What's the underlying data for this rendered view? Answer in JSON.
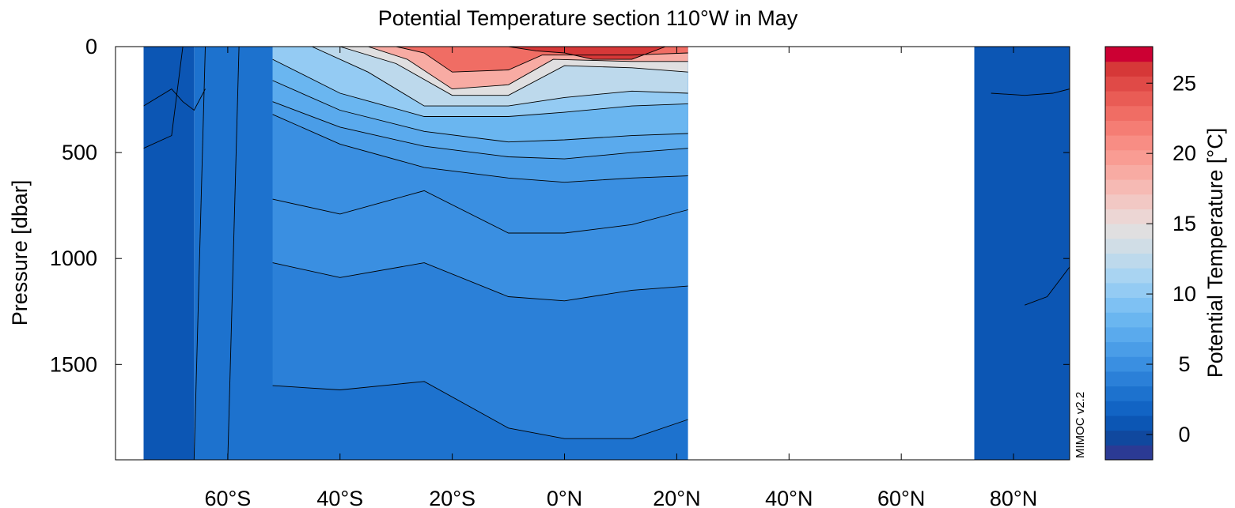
{
  "chart_data": {
    "type": "heatmap",
    "title": "Potential Temperature section 110°W in May",
    "xlabel": "",
    "ylabel": "Pressure [dbar]",
    "colorbar_label": "Potential Temperature [°C]",
    "watermark": "MIMOC v2.2",
    "xlim": [
      -80,
      90
    ],
    "ylim": [
      1950,
      0
    ],
    "x_ticks": [
      {
        "value": -60,
        "label": "60°S"
      },
      {
        "value": -40,
        "label": "40°S"
      },
      {
        "value": -20,
        "label": "20°S"
      },
      {
        "value": 0,
        "label": "0°N"
      },
      {
        "value": 20,
        "label": "20°N"
      },
      {
        "value": 40,
        "label": "40°N"
      },
      {
        "value": 60,
        "label": "60°N"
      },
      {
        "value": 80,
        "label": "80°N"
      }
    ],
    "y_ticks": [
      {
        "value": 0,
        "label": "0"
      },
      {
        "value": 500,
        "label": "500"
      },
      {
        "value": 1000,
        "label": "1000"
      },
      {
        "value": 1500,
        "label": "1500"
      }
    ],
    "colorbar": {
      "min": -1.8,
      "max": 27.6,
      "ticks": [
        {
          "value": 0,
          "label": "0"
        },
        {
          "value": 5,
          "label": "5"
        },
        {
          "value": 10,
          "label": "10"
        },
        {
          "value": 15,
          "label": "15"
        },
        {
          "value": 20,
          "label": "20"
        },
        {
          "value": 25,
          "label": "25"
        }
      ],
      "colors": [
        "#2b3a94",
        "#10489e",
        "#0c56b4",
        "#1264c4",
        "#1d72ce",
        "#2b80d8",
        "#3a8fe1",
        "#4a9de7",
        "#5aaaed",
        "#6ab6f0",
        "#7ec1f3",
        "#94cbf3",
        "#a9d4f2",
        "#bdd9ec",
        "#d0dde6",
        "#e0dfe0",
        "#ecd6d4",
        "#f2c8c4",
        "#f6bab4",
        "#f8aba3",
        "#f99c93",
        "#f88d84",
        "#f57d74",
        "#f06d64",
        "#e95c55",
        "#e04a47",
        "#d63838",
        "#cc0033"
      ]
    },
    "series": [
      {
        "level": -1,
        "depth": [
          [
            -75,
            280
          ],
          [
            -70,
            200
          ],
          [
            -68,
            260
          ],
          [
            -66,
            300
          ],
          [
            -64,
            200
          ]
        ]
      },
      {
        "level": 0,
        "depth": [
          [
            -75,
            480
          ],
          [
            -70,
            420
          ],
          [
            -68,
            0
          ]
        ]
      },
      {
        "level": 1,
        "depth": [
          [
            -66,
            1950
          ],
          [
            -64,
            0
          ]
        ]
      },
      {
        "level": 2,
        "depth": [
          [
            -60,
            1950
          ],
          [
            -58,
            0
          ]
        ]
      },
      {
        "level": 3,
        "depth": [
          [
            -52,
            1600
          ],
          [
            -40,
            1620
          ],
          [
            -25,
            1580
          ],
          [
            -10,
            1800
          ],
          [
            0,
            1850
          ],
          [
            12,
            1850
          ],
          [
            22,
            1760
          ]
        ]
      },
      {
        "level": 4,
        "depth": [
          [
            -52,
            1020
          ],
          [
            -40,
            1090
          ],
          [
            -25,
            1020
          ],
          [
            -10,
            1180
          ],
          [
            0,
            1200
          ],
          [
            12,
            1150
          ],
          [
            22,
            1130
          ]
        ]
      },
      {
        "level": 5,
        "depth": [
          [
            -52,
            720
          ],
          [
            -40,
            790
          ],
          [
            -25,
            680
          ],
          [
            -10,
            880
          ],
          [
            0,
            880
          ],
          [
            12,
            840
          ],
          [
            22,
            770
          ]
        ]
      },
      {
        "level": 6,
        "depth": [
          [
            -52,
            320
          ],
          [
            -40,
            460
          ],
          [
            -25,
            570
          ],
          [
            -10,
            620
          ],
          [
            0,
            640
          ],
          [
            12,
            620
          ],
          [
            22,
            610
          ]
        ]
      },
      {
        "level": 7,
        "depth": [
          [
            -52,
            260
          ],
          [
            -40,
            380
          ],
          [
            -25,
            470
          ],
          [
            -10,
            520
          ],
          [
            0,
            530
          ],
          [
            12,
            500
          ],
          [
            22,
            480
          ]
        ]
      },
      {
        "level": 8,
        "depth": [
          [
            -52,
            160
          ],
          [
            -40,
            300
          ],
          [
            -25,
            400
          ],
          [
            -10,
            450
          ],
          [
            0,
            440
          ],
          [
            12,
            420
          ],
          [
            22,
            410
          ]
        ]
      },
      {
        "level": 10,
        "depth": [
          [
            -52,
            60
          ],
          [
            -40,
            220
          ],
          [
            -25,
            330
          ],
          [
            -10,
            330
          ],
          [
            0,
            310
          ],
          [
            12,
            280
          ],
          [
            22,
            270
          ]
        ]
      },
      {
        "level": 12,
        "depth": [
          [
            -45,
            0
          ],
          [
            -35,
            120
          ],
          [
            -25,
            280
          ],
          [
            -10,
            280
          ],
          [
            0,
            240
          ],
          [
            12,
            210
          ],
          [
            22,
            220
          ]
        ]
      },
      {
        "level": 14,
        "depth": [
          [
            -40,
            0
          ],
          [
            -30,
            80
          ],
          [
            -20,
            230
          ],
          [
            -10,
            230
          ],
          [
            0,
            90
          ],
          [
            12,
            100
          ],
          [
            22,
            120
          ]
        ]
      },
      {
        "level": 18,
        "depth": [
          [
            -35,
            0
          ],
          [
            -28,
            60
          ],
          [
            -20,
            200
          ],
          [
            -10,
            180
          ],
          [
            -2,
            60
          ],
          [
            12,
            70
          ],
          [
            22,
            70
          ]
        ]
      },
      {
        "level": 22,
        "depth": [
          [
            -30,
            0
          ],
          [
            -25,
            30
          ],
          [
            -20,
            120
          ],
          [
            -10,
            110
          ],
          [
            -4,
            40
          ],
          [
            12,
            40
          ],
          [
            22,
            30
          ]
        ]
      },
      {
        "level": 26,
        "depth": [
          [
            -10,
            0
          ],
          [
            -5,
            20
          ],
          [
            0,
            30
          ],
          [
            5,
            60
          ],
          [
            12,
            60
          ],
          [
            16,
            20
          ],
          [
            18,
            0
          ]
        ]
      },
      {
        "level": 0.5,
        "depth": [
          [
            69,
            0
          ],
          [
            71,
            1950
          ]
        ]
      },
      {
        "level": -0.5,
        "depth": [
          [
            76,
            220
          ],
          [
            82,
            230
          ],
          [
            87,
            220
          ],
          [
            90,
            200
          ]
        ]
      },
      {
        "level": -1.5,
        "depth": [
          [
            82,
            1220
          ],
          [
            86,
            1180
          ],
          [
            90,
            1040
          ]
        ]
      }
    ]
  }
}
